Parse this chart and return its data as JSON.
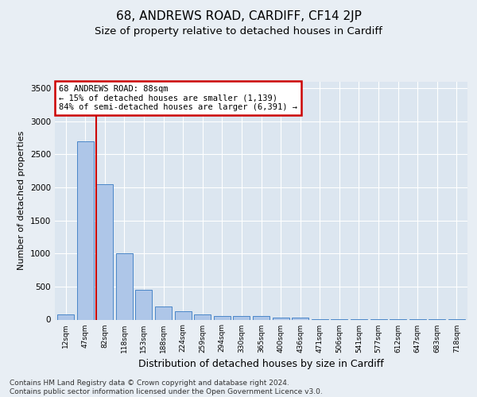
{
  "title1": "68, ANDREWS ROAD, CARDIFF, CF14 2JP",
  "title2": "Size of property relative to detached houses in Cardiff",
  "xlabel": "Distribution of detached houses by size in Cardiff",
  "ylabel": "Number of detached properties",
  "bar_labels": [
    "12sqm",
    "47sqm",
    "82sqm",
    "118sqm",
    "153sqm",
    "188sqm",
    "224sqm",
    "259sqm",
    "294sqm",
    "330sqm",
    "365sqm",
    "400sqm",
    "436sqm",
    "471sqm",
    "506sqm",
    "541sqm",
    "577sqm",
    "612sqm",
    "647sqm",
    "683sqm",
    "718sqm"
  ],
  "bar_values": [
    75,
    2700,
    2050,
    1000,
    450,
    200,
    130,
    75,
    50,
    50,
    50,
    30,
    30,
    10,
    10,
    5,
    5,
    2,
    2,
    1,
    1
  ],
  "bar_color": "#aec6e8",
  "bar_edge_color": "#4a86c8",
  "vline_color": "#cc0000",
  "annotation_text": "68 ANDREWS ROAD: 88sqm\n← 15% of detached houses are smaller (1,139)\n84% of semi-detached houses are larger (6,391) →",
  "annotation_box_color": "#ffffff",
  "annotation_box_edge": "#cc0000",
  "ylim": [
    0,
    3600
  ],
  "yticks": [
    0,
    500,
    1000,
    1500,
    2000,
    2500,
    3000,
    3500
  ],
  "bg_color": "#e8eef4",
  "plot_bg": "#dce6f0",
  "footer": "Contains HM Land Registry data © Crown copyright and database right 2024.\nContains public sector information licensed under the Open Government Licence v3.0.",
  "title1_fontsize": 11,
  "title2_fontsize": 9.5,
  "xlabel_fontsize": 9,
  "ylabel_fontsize": 8,
  "footer_fontsize": 6.5
}
